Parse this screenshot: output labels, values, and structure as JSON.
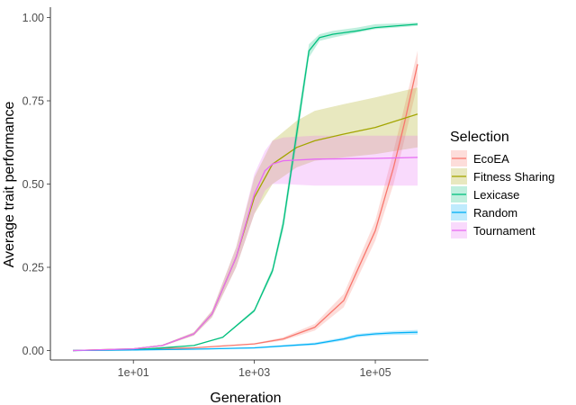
{
  "chart_data": {
    "type": "line",
    "xlabel": "Generation",
    "ylabel": "Average trait performance",
    "x_scale": "log10",
    "xlim": [
      1,
      500000
    ],
    "ylim": [
      0,
      1
    ],
    "x_ticks": [
      10,
      1000,
      100000
    ],
    "x_tick_labels": [
      "1e+01",
      "1e+03",
      "1e+05"
    ],
    "y_ticks": [
      0,
      0.25,
      0.5,
      0.75,
      1
    ],
    "y_tick_labels": [
      "0.00",
      "0.25",
      "0.50",
      "0.75",
      "1.00"
    ],
    "grid": false,
    "legend": {
      "title": "Selection",
      "position": "right"
    },
    "series": [
      {
        "name": "EcoEA",
        "color": "#F8766D",
        "x": [
          1,
          10,
          100,
          1000,
          3000,
          10000,
          30000,
          100000,
          200000,
          300000,
          500000
        ],
        "y": [
          0,
          0.004,
          0.008,
          0.02,
          0.035,
          0.07,
          0.15,
          0.36,
          0.55,
          0.68,
          0.86
        ],
        "lower": [
          0,
          0.003,
          0.007,
          0.018,
          0.03,
          0.06,
          0.13,
          0.33,
          0.5,
          0.63,
          0.8
        ],
        "upper": [
          0,
          0.005,
          0.009,
          0.022,
          0.04,
          0.08,
          0.17,
          0.39,
          0.6,
          0.73,
          0.9
        ]
      },
      {
        "name": "Fitness Sharing",
        "color": "#A3A500",
        "x": [
          1,
          10,
          30,
          100,
          200,
          500,
          1000,
          2000,
          5000,
          10000,
          30000,
          100000,
          500000
        ],
        "y": [
          0,
          0.005,
          0.015,
          0.05,
          0.11,
          0.28,
          0.46,
          0.56,
          0.61,
          0.63,
          0.65,
          0.67,
          0.71
        ],
        "lower": [
          0,
          0.004,
          0.013,
          0.045,
          0.1,
          0.25,
          0.41,
          0.5,
          0.55,
          0.57,
          0.58,
          0.59,
          0.61
        ],
        "upper": [
          0,
          0.006,
          0.017,
          0.055,
          0.12,
          0.31,
          0.52,
          0.63,
          0.69,
          0.72,
          0.74,
          0.76,
          0.79
        ]
      },
      {
        "name": "Lexicase",
        "color": "#00BF7D",
        "x": [
          1,
          10,
          100,
          300,
          1000,
          2000,
          3000,
          5000,
          8000,
          12000,
          20000,
          50000,
          100000,
          500000
        ],
        "y": [
          0,
          0.002,
          0.015,
          0.04,
          0.12,
          0.24,
          0.38,
          0.65,
          0.9,
          0.94,
          0.95,
          0.96,
          0.97,
          0.98
        ],
        "lower": [
          0,
          0.002,
          0.014,
          0.038,
          0.115,
          0.23,
          0.36,
          0.62,
          0.88,
          0.93,
          0.94,
          0.955,
          0.965,
          0.975
        ],
        "upper": [
          0,
          0.002,
          0.016,
          0.042,
          0.125,
          0.25,
          0.4,
          0.68,
          0.92,
          0.95,
          0.96,
          0.97,
          0.98,
          0.985
        ]
      },
      {
        "name": "Random",
        "color": "#00B0F6",
        "x": [
          1,
          10,
          100,
          1000,
          10000,
          30000,
          50000,
          100000,
          200000,
          500000
        ],
        "y": [
          0,
          0.002,
          0.004,
          0.008,
          0.02,
          0.035,
          0.045,
          0.05,
          0.053,
          0.055
        ],
        "lower": [
          0,
          0.001,
          0.003,
          0.006,
          0.016,
          0.03,
          0.04,
          0.045,
          0.047,
          0.048
        ],
        "upper": [
          0,
          0.003,
          0.005,
          0.01,
          0.024,
          0.04,
          0.05,
          0.055,
          0.059,
          0.062
        ]
      },
      {
        "name": "Tournament",
        "color": "#E76BF3",
        "x": [
          1,
          10,
          30,
          100,
          200,
          500,
          1000,
          1500,
          2000,
          3000,
          10000,
          100000,
          500000
        ],
        "y": [
          0,
          0.005,
          0.015,
          0.05,
          0.11,
          0.28,
          0.47,
          0.54,
          0.56,
          0.57,
          0.575,
          0.577,
          0.58
        ],
        "lower": [
          0,
          0.004,
          0.013,
          0.045,
          0.1,
          0.25,
          0.41,
          0.48,
          0.5,
          0.5,
          0.495,
          0.495,
          0.495
        ],
        "upper": [
          0,
          0.006,
          0.017,
          0.055,
          0.12,
          0.31,
          0.53,
          0.6,
          0.63,
          0.64,
          0.645,
          0.645,
          0.645
        ]
      }
    ]
  }
}
